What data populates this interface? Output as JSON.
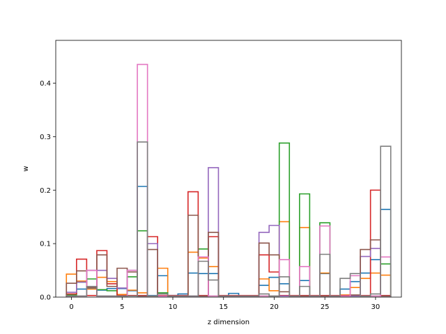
{
  "chart_data": {
    "type": "step",
    "xlabel": "z dimension",
    "ylabel": "w",
    "xlim": [
      -1.55,
      32.55
    ],
    "ylim": [
      0,
      0.48
    ],
    "xticks": [
      0,
      5,
      10,
      15,
      20,
      25,
      30
    ],
    "yticks": [
      0.0,
      0.1,
      0.2,
      0.3,
      0.4
    ],
    "grid": false,
    "legend": "none",
    "x": [
      0,
      1,
      2,
      3,
      4,
      5,
      6,
      7,
      8,
      9,
      10,
      11,
      12,
      13,
      14,
      15,
      16,
      17,
      18,
      19,
      20,
      21,
      22,
      23,
      24,
      25,
      26,
      27,
      28,
      29,
      30,
      31
    ],
    "series": [
      {
        "color": "#1f77b4",
        "values": [
          0.002,
          0.015,
          0.017,
          0.013,
          0.016,
          0.016,
          0.012,
          0.207,
          0.003,
          0.04,
          0.003,
          0.006,
          0.045,
          0.044,
          0.044,
          0.002,
          0.007,
          0.002,
          0.002,
          0.022,
          0.037,
          0.025,
          0.002,
          0.031,
          0.002,
          0.044,
          0.002,
          0.015,
          0.029,
          0.045,
          0.07,
          0.164
        ]
      },
      {
        "color": "#ff7f0e",
        "values": [
          0.043,
          0.03,
          0.015,
          0.037,
          0.029,
          0.005,
          0.013,
          0.008,
          0.002,
          0.054,
          0.002,
          0.002,
          0.084,
          0.073,
          0.057,
          0.002,
          0.002,
          0.002,
          0.002,
          0.034,
          0.012,
          0.141,
          0.002,
          0.13,
          0.002,
          0.045,
          0.002,
          0.004,
          0.018,
          0.035,
          0.045,
          0.041
        ]
      },
      {
        "color": "#2ca02c",
        "values": [
          0.004,
          0.028,
          0.034,
          0.014,
          0.012,
          0.002,
          0.038,
          0.124,
          0.002,
          0.008,
          0.002,
          0.002,
          0.002,
          0.09,
          0.002,
          0.002,
          0.002,
          0.002,
          0.002,
          0.002,
          0.002,
          0.288,
          0.002,
          0.193,
          0.002,
          0.139,
          0.002,
          0.002,
          0.002,
          0.002,
          0.002,
          0.062
        ]
      },
      {
        "color": "#d62728",
        "values": [
          0.006,
          0.071,
          0.003,
          0.087,
          0.025,
          0.003,
          0.003,
          0.003,
          0.113,
          0.003,
          0.003,
          0.003,
          0.197,
          0.003,
          0.113,
          0.003,
          0.003,
          0.003,
          0.003,
          0.079,
          0.047,
          0.003,
          0.003,
          0.003,
          0.003,
          0.003,
          0.003,
          0.003,
          0.003,
          0.003,
          0.2,
          0.003
        ]
      },
      {
        "color": "#9467bd",
        "values": [
          0.009,
          0.028,
          0.05,
          0.05,
          0.035,
          0.017,
          0.05,
          0.002,
          0.1,
          0.002,
          0.002,
          0.002,
          0.002,
          0.002,
          0.242,
          0.002,
          0.002,
          0.002,
          0.002,
          0.121,
          0.134,
          0.002,
          0.002,
          0.002,
          0.002,
          0.002,
          0.002,
          0.002,
          0.002,
          0.076,
          0.091,
          0.002
        ]
      },
      {
        "color": "#8c564b",
        "values": [
          0.026,
          0.049,
          0.018,
          0.079,
          0.02,
          0.054,
          0.047,
          0.002,
          0.089,
          0.002,
          0.002,
          0.002,
          0.153,
          0.002,
          0.121,
          0.002,
          0.002,
          0.002,
          0.002,
          0.101,
          0.079,
          0.01,
          0.002,
          0.002,
          0.002,
          0.002,
          0.002,
          0.002,
          0.004,
          0.089,
          0.107,
          0.002
        ]
      },
      {
        "color": "#e377c2",
        "values": [
          0.002,
          0.002,
          0.05,
          0.002,
          0.002,
          0.002,
          0.05,
          0.435,
          0.002,
          0.002,
          0.002,
          0.002,
          0.002,
          0.075,
          0.002,
          0.002,
          0.002,
          0.002,
          0.002,
          0.002,
          0.002,
          0.07,
          0.002,
          0.057,
          0.002,
          0.133,
          0.002,
          0.002,
          0.04,
          0.002,
          0.002,
          0.075
        ]
      },
      {
        "color": "#7f7f7f",
        "values": [
          0.002,
          0.002,
          0.02,
          0.002,
          0.002,
          0.002,
          0.002,
          0.29,
          0.002,
          0.006,
          0.002,
          0.002,
          0.002,
          0.067,
          0.032,
          0.002,
          0.002,
          0.002,
          0.002,
          0.006,
          0.002,
          0.038,
          0.002,
          0.02,
          0.002,
          0.08,
          0.002,
          0.035,
          0.044,
          0.002,
          0.006,
          0.282
        ]
      }
    ]
  }
}
